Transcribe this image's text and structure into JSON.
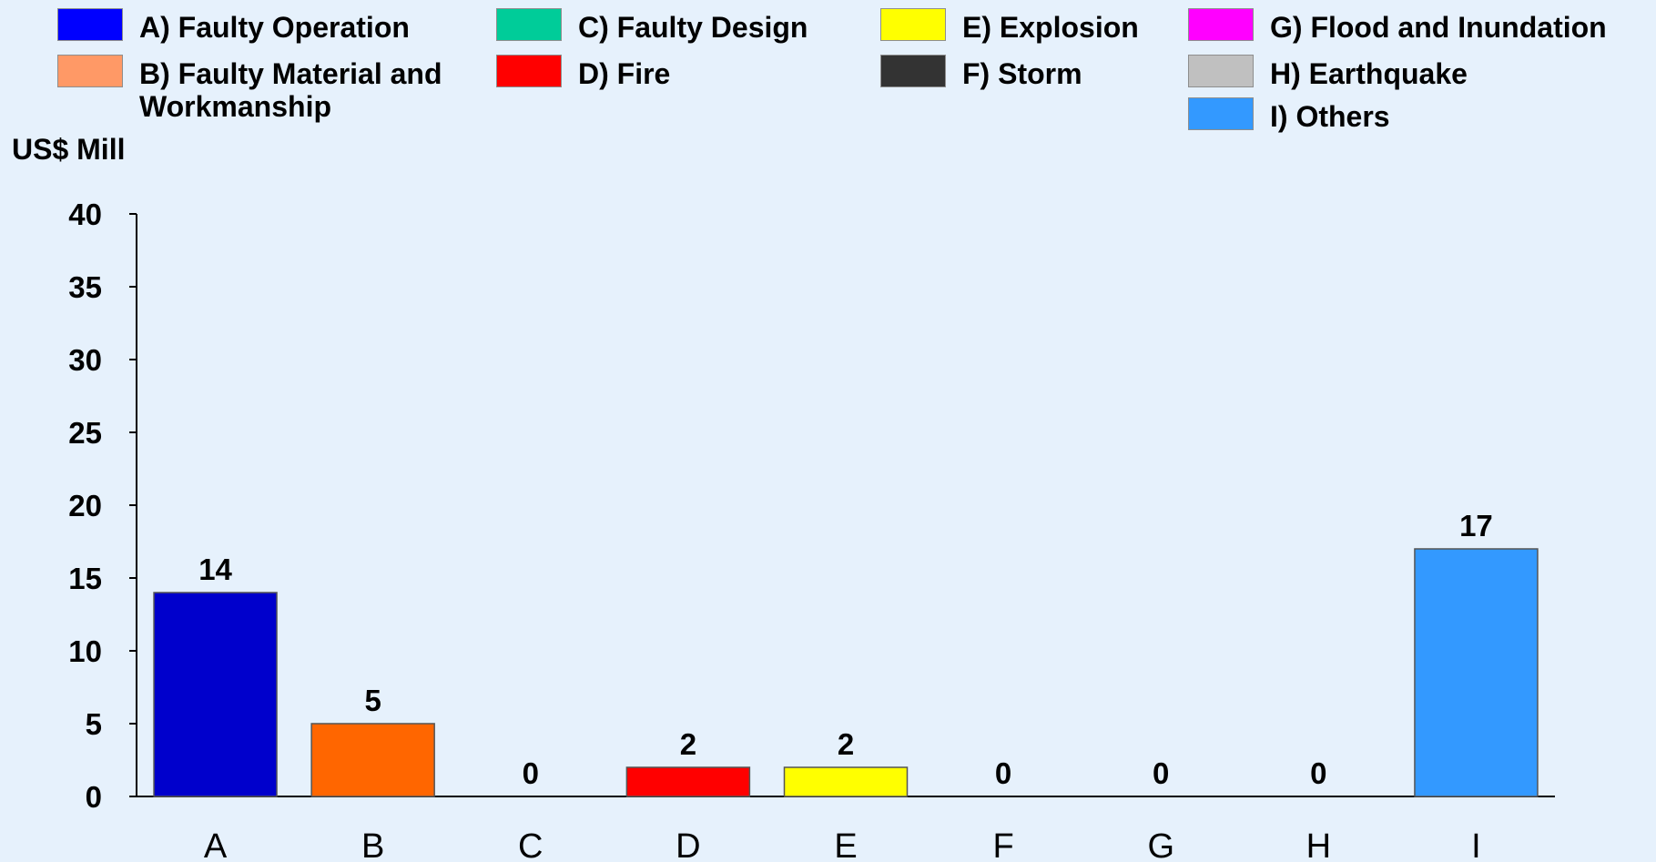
{
  "legend": [
    {
      "label": "A) Faulty Operation",
      "color": "#0000ff"
    },
    {
      "label": "B) Faulty Material and\n      Workmanship",
      "color": "#ff9966"
    },
    {
      "label": "C) Faulty Design",
      "color": "#00cc99"
    },
    {
      "label": "D) Fire",
      "color": "#ff0000"
    },
    {
      "label": "E) Explosion",
      "color": "#ffff00"
    },
    {
      "label": "F) Storm",
      "color": "#333333"
    },
    {
      "label": "G) Flood and Inundation",
      "color": "#ff00ff"
    },
    {
      "label": "H) Earthquake",
      "color": "#c0c0c0"
    },
    {
      "label": " I) Others",
      "color": "#3399ff"
    }
  ],
  "chart_data": {
    "type": "bar",
    "ylabel": "US$ Mill",
    "categories": [
      "A",
      "B",
      "C",
      "D",
      "E",
      "F",
      "G",
      "H",
      "I"
    ],
    "values": [
      14,
      5,
      0,
      2,
      2,
      0,
      0,
      0,
      17
    ],
    "data_labels": [
      "14",
      "5",
      "0",
      "2",
      "2",
      "0",
      "0",
      "0",
      "17"
    ],
    "bar_colors": [
      "#0000cc",
      "#ff6600",
      "#00cc99",
      "#ff0000",
      "#ffff00",
      "#333333",
      "#ff00ff",
      "#c0c0c0",
      "#3399ff"
    ],
    "ylim": [
      0,
      40
    ],
    "yticks": [
      0,
      5,
      10,
      15,
      20,
      25,
      30,
      35,
      40
    ],
    "grid": false,
    "legend_position": "top"
  }
}
